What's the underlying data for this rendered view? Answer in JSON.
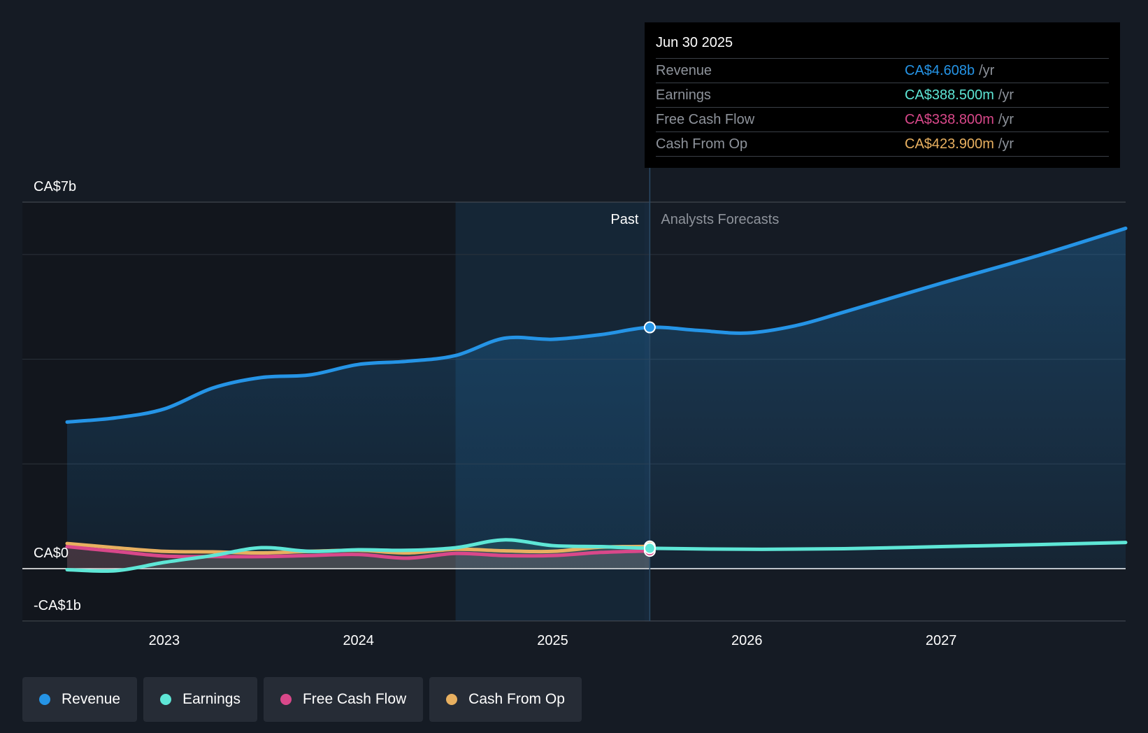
{
  "colors": {
    "revenue": "#2594e6",
    "earnings": "#5ee6d6",
    "free_cash_flow": "#d9488a",
    "cash_from_op": "#e8b060",
    "background": "#151b24"
  },
  "tooltip": {
    "date": "Jun 30 2025",
    "rows": [
      {
        "label": "Revenue",
        "value": "CA$4.608b",
        "unit": "/yr"
      },
      {
        "label": "Earnings",
        "value": "CA$388.500m",
        "unit": "/yr"
      },
      {
        "label": "Free Cash Flow",
        "value": "CA$338.800m",
        "unit": "/yr"
      },
      {
        "label": "Cash From Op",
        "value": "CA$423.900m",
        "unit": "/yr"
      }
    ]
  },
  "legend": [
    {
      "label": "Revenue",
      "color_key": "revenue"
    },
    {
      "label": "Earnings",
      "color_key": "earnings"
    },
    {
      "label": "Free Cash Flow",
      "color_key": "free_cash_flow"
    },
    {
      "label": "Cash From Op",
      "color_key": "cash_from_op"
    }
  ],
  "chart_data": {
    "type": "area",
    "title": "",
    "xlabel": "",
    "ylabel": "",
    "x_range": [
      2022.5,
      2027.95
    ],
    "ylim": [
      -1,
      7
    ],
    "y_tick_labels": [
      {
        "value": 7,
        "label": "CA$7b"
      },
      {
        "value": 0,
        "label": "CA$0"
      },
      {
        "value": -1,
        "label": "-CA$1b"
      }
    ],
    "gridlines": [
      7,
      6,
      4,
      2,
      0,
      -1
    ],
    "x_ticks": [
      {
        "value": 2023,
        "label": "2023"
      },
      {
        "value": 2024,
        "label": "2024"
      },
      {
        "value": 2025,
        "label": "2025"
      },
      {
        "value": 2026,
        "label": "2026"
      },
      {
        "value": 2027,
        "label": "2027"
      }
    ],
    "past_label": "Past",
    "forecast_label": "Analysts Forecasts",
    "divider_x": 2025.5,
    "highlight_start": 2024.5,
    "series": [
      {
        "name": "Revenue",
        "color_key": "revenue",
        "fill": true,
        "past": [
          [
            2022.5,
            2.8
          ],
          [
            2022.75,
            2.88
          ],
          [
            2023,
            3.05
          ],
          [
            2023.25,
            3.45
          ],
          [
            2023.5,
            3.65
          ],
          [
            2023.75,
            3.7
          ],
          [
            2024,
            3.9
          ],
          [
            2024.25,
            3.96
          ],
          [
            2024.5,
            4.07
          ],
          [
            2024.75,
            4.4
          ],
          [
            2025,
            4.38
          ],
          [
            2025.25,
            4.47
          ],
          [
            2025.5,
            4.608
          ]
        ],
        "forecast": [
          [
            2025.5,
            4.608
          ],
          [
            2025.75,
            4.55
          ],
          [
            2026,
            4.5
          ],
          [
            2026.25,
            4.64
          ],
          [
            2026.5,
            4.9
          ],
          [
            2027,
            5.45
          ],
          [
            2027.5,
            5.98
          ],
          [
            2027.95,
            6.5
          ]
        ]
      },
      {
        "name": "Earnings",
        "color_key": "earnings",
        "fill": false,
        "past": [
          [
            2022.5,
            -0.02
          ],
          [
            2022.75,
            -0.04
          ],
          [
            2023,
            0.12
          ],
          [
            2023.25,
            0.25
          ],
          [
            2023.5,
            0.4
          ],
          [
            2023.75,
            0.33
          ],
          [
            2024,
            0.36
          ],
          [
            2024.25,
            0.35
          ],
          [
            2024.5,
            0.4
          ],
          [
            2024.75,
            0.55
          ],
          [
            2025,
            0.44
          ],
          [
            2025.25,
            0.42
          ],
          [
            2025.5,
            0.3885
          ]
        ],
        "forecast": [
          [
            2025.5,
            0.3885
          ],
          [
            2026,
            0.37
          ],
          [
            2026.5,
            0.38
          ],
          [
            2027,
            0.42
          ],
          [
            2027.5,
            0.46
          ],
          [
            2027.95,
            0.5
          ]
        ]
      },
      {
        "name": "Free Cash Flow",
        "color_key": "free_cash_flow",
        "fill": false,
        "past": [
          [
            2022.5,
            0.42
          ],
          [
            2022.75,
            0.33
          ],
          [
            2023,
            0.24
          ],
          [
            2023.25,
            0.23
          ],
          [
            2023.5,
            0.23
          ],
          [
            2023.75,
            0.25
          ],
          [
            2024,
            0.27
          ],
          [
            2024.25,
            0.2
          ],
          [
            2024.5,
            0.29
          ],
          [
            2024.75,
            0.25
          ],
          [
            2025,
            0.25
          ],
          [
            2025.25,
            0.31
          ],
          [
            2025.5,
            0.3388
          ]
        ],
        "forecast": []
      },
      {
        "name": "Cash From Op",
        "color_key": "cash_from_op",
        "fill": false,
        "past": [
          [
            2022.5,
            0.48
          ],
          [
            2022.75,
            0.4
          ],
          [
            2023,
            0.33
          ],
          [
            2023.25,
            0.32
          ],
          [
            2023.5,
            0.3
          ],
          [
            2023.75,
            0.33
          ],
          [
            2024,
            0.35
          ],
          [
            2024.25,
            0.3
          ],
          [
            2024.5,
            0.37
          ],
          [
            2024.75,
            0.34
          ],
          [
            2025,
            0.33
          ],
          [
            2025.25,
            0.41
          ],
          [
            2025.5,
            0.4239
          ]
        ],
        "forecast": []
      }
    ]
  }
}
